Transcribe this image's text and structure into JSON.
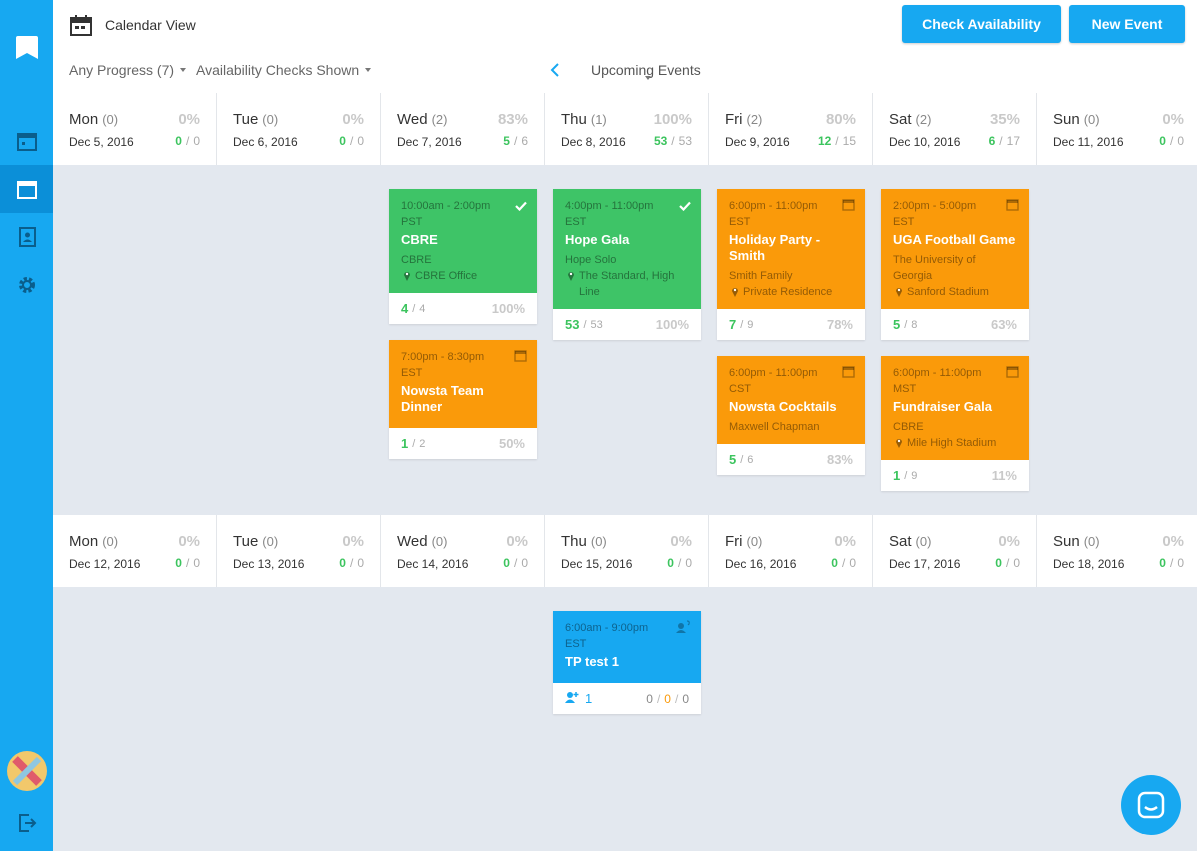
{
  "header": {
    "title": "Calendar View",
    "buttons": [
      "Check Availability",
      "New Event"
    ]
  },
  "filters": {
    "progress": "Any Progress (7)",
    "checks": "Availability Checks Shown",
    "view": "Upcoming Events"
  },
  "sep": "/",
  "weeks": [
    {
      "days": [
        {
          "name": "Mon",
          "count": "(0)",
          "pct": "0%",
          "date": "Dec 5, 2016",
          "done": 0,
          "total": 0,
          "events": []
        },
        {
          "name": "Tue",
          "count": "(0)",
          "pct": "0%",
          "date": "Dec 6, 2016",
          "done": 0,
          "total": 0,
          "events": []
        },
        {
          "name": "Wed",
          "count": "(2)",
          "pct": "83%",
          "date": "Dec 7, 2016",
          "done": 5,
          "total": 6,
          "events": [
            {
              "status": "confirmed",
              "time": "10:00am - 2:00pm",
              "tz": "PST",
              "title": "CBRE",
              "client": "CBRE",
              "location": "CBRE Office",
              "done": 4,
              "total": 4,
              "pct": "100%"
            },
            {
              "status": "pending",
              "time": "7:00pm - 8:30pm",
              "tz": "EST",
              "title": "Nowsta Team Dinner",
              "done": 1,
              "total": 2,
              "pct": "50%"
            }
          ]
        },
        {
          "name": "Thu",
          "count": "(1)",
          "pct": "100%",
          "date": "Dec 8, 2016",
          "done": 53,
          "total": 53,
          "events": [
            {
              "status": "confirmed",
              "time": "4:00pm - 11:00pm",
              "tz": "EST",
              "title": "Hope Gala",
              "client": "Hope Solo",
              "location": "The Standard, High Line",
              "done": 53,
              "total": 53,
              "pct": "100%"
            }
          ]
        },
        {
          "name": "Fri",
          "count": "(2)",
          "pct": "80%",
          "date": "Dec 9, 2016",
          "done": 12,
          "total": 15,
          "events": [
            {
              "status": "pending",
              "time": "6:00pm - 11:00pm",
              "tz": "EST",
              "title": "Holiday Party - Smith",
              "client": "Smith Family",
              "location": "Private Residence",
              "done": 7,
              "total": 9,
              "pct": "78%"
            },
            {
              "status": "pending",
              "time": "6:00pm - 11:00pm",
              "tz": "CST",
              "title": "Nowsta Cocktails",
              "client": "Maxwell Chapman",
              "done": 5,
              "total": 6,
              "pct": "83%"
            }
          ]
        },
        {
          "name": "Sat",
          "count": "(2)",
          "pct": "35%",
          "date": "Dec 10, 2016",
          "done": 6,
          "total": 17,
          "events": [
            {
              "status": "pending",
              "time": "2:00pm - 5:00pm",
              "tz": "EST",
              "title": "UGA Football Game",
              "client": "The University of Georgia",
              "location": "Sanford Stadium",
              "done": 5,
              "total": 8,
              "pct": "63%"
            },
            {
              "status": "pending",
              "time": "6:00pm - 11:00pm",
              "tz": "MST",
              "title": "Fundraiser Gala",
              "client": "CBRE",
              "location": "Mile High Stadium",
              "done": 1,
              "total": 9,
              "pct": "11%"
            }
          ]
        },
        {
          "name": "Sun",
          "count": "(0)",
          "pct": "0%",
          "date": "Dec 11, 2016",
          "done": 0,
          "total": 0,
          "events": []
        }
      ]
    },
    {
      "days": [
        {
          "name": "Mon",
          "count": "(0)",
          "pct": "0%",
          "date": "Dec 12, 2016",
          "done": 0,
          "total": 0,
          "events": []
        },
        {
          "name": "Tue",
          "count": "(0)",
          "pct": "0%",
          "date": "Dec 13, 2016",
          "done": 0,
          "total": 0,
          "events": []
        },
        {
          "name": "Wed",
          "count": "(0)",
          "pct": "0%",
          "date": "Dec 14, 2016",
          "done": 0,
          "total": 0,
          "events": []
        },
        {
          "name": "Thu",
          "count": "(0)",
          "pct": "0%",
          "date": "Dec 15, 2016",
          "done": 0,
          "total": 0,
          "events": [
            {
              "status": "open",
              "time": "6:00am - 9:00pm",
              "tz": "EST",
              "title": "TP test 1",
              "staff": 1,
              "counts": [
                0,
                0,
                0
              ]
            }
          ]
        },
        {
          "name": "Fri",
          "count": "(0)",
          "pct": "0%",
          "date": "Dec 16, 2016",
          "done": 0,
          "total": 0,
          "events": []
        },
        {
          "name": "Sat",
          "count": "(0)",
          "pct": "0%",
          "date": "Dec 17, 2016",
          "done": 0,
          "total": 0,
          "events": []
        },
        {
          "name": "Sun",
          "count": "(0)",
          "pct": "0%",
          "date": "Dec 18, 2016",
          "done": 0,
          "total": 0,
          "events": []
        }
      ]
    }
  ]
}
